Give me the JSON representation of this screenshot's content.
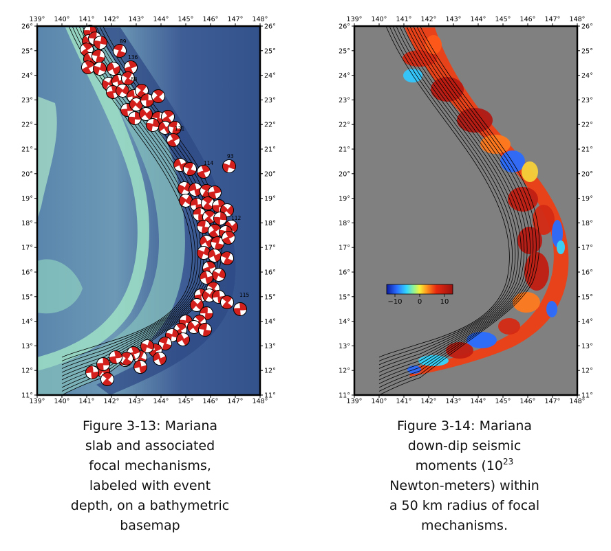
{
  "figures": [
    {
      "caption": {
        "line1": "Figure 3-13:  Mariana",
        "line2": "slab and associated",
        "line3": "focal mechanisms,",
        "line4": "labeled with event",
        "line5": "depth, on a bathymetric",
        "line6": "basemap"
      },
      "event_depth_labels": [
        "89",
        "136",
        "83",
        "131",
        "93",
        "114",
        "112",
        "115"
      ]
    },
    {
      "caption": {
        "line1": "Figure 3-14:  Mariana",
        "line2": "down-dip seismic",
        "line3_pre": "moments (10",
        "line3_sup": "23",
        "line4": "Newton-meters) within",
        "line5": "a 50 km radius of focal",
        "line6": "mechanisms."
      },
      "colorbar": {
        "tick_labels": [
          "−10",
          "0",
          "10"
        ],
        "colormap": [
          "#0a1a9e",
          "#2a6dff",
          "#33d6ff",
          "#9df58a",
          "#f5f23a",
          "#ff9a1f",
          "#e82a10",
          "#9e1210"
        ]
      }
    }
  ],
  "map_axes": {
    "longitude_ticks": [
      "139°",
      "140°",
      "141°",
      "142°",
      "143°",
      "144°",
      "145°",
      "146°",
      "147°",
      "148°"
    ],
    "latitude_ticks": [
      "26°",
      "25°",
      "24°",
      "23°",
      "22°",
      "21°",
      "20°",
      "19°",
      "18°",
      "17°",
      "16°",
      "15°",
      "14°",
      "13°",
      "12°",
      "11°"
    ],
    "lon_range": [
      139,
      148
    ],
    "lat_range": [
      11,
      26
    ]
  },
  "colors": {
    "ocean_deep": "#3e5d96",
    "ocean_mid": "#6d99b6",
    "ridge_shallow": "#96dcc2",
    "no_data_gray": "#808080",
    "mechanism_red": "#d4201c",
    "contour_black": "#000000"
  }
}
